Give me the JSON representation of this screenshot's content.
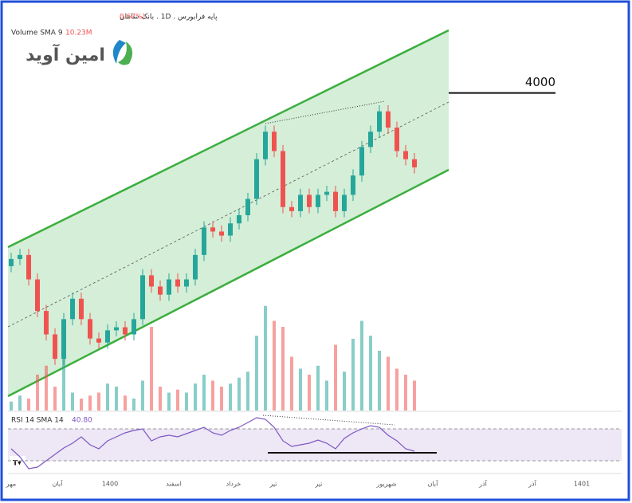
{
  "chart_data": {
    "type": "candlestick",
    "header": "پایه فرابورس . 1D . بانک سامان",
    "change": "0.67%)",
    "volume_label": "Volume SMA 9",
    "volume_sma": "10.23M",
    "rsi_label": "RSI 14 SMA 14",
    "rsi_sma": "40.80",
    "logo": "امین آوید",
    "level": {
      "value": 4000,
      "label": "4000"
    },
    "up_color": "#26a69a",
    "down_color": "#ef5350",
    "ylim": [
      1000,
      4600
    ],
    "open": [
      2300,
      2370,
      2410,
      2170,
      1860,
      1630,
      1390,
      1780,
      1980,
      1780,
      1590,
      1550,
      1670,
      1700,
      1630,
      1780,
      2210,
      2100,
      2020,
      2170,
      2100,
      2170,
      2410,
      2680,
      2640,
      2600,
      2720,
      2800,
      2960,
      3350,
      3620,
      3430,
      2880,
      2840,
      3000,
      2880,
      3000,
      3030,
      2840,
      3000,
      3190,
      3470,
      3620,
      3820,
      3660,
      3430,
      3350
    ],
    "high": [
      2430,
      2470,
      2470,
      2230,
      1920,
      1690,
      1840,
      2040,
      2040,
      1840,
      1650,
      1730,
      1760,
      1760,
      1840,
      2270,
      2270,
      2160,
      2230,
      2230,
      2230,
      2470,
      2740,
      2740,
      2700,
      2780,
      2860,
      3020,
      3410,
      3680,
      3680,
      3490,
      2940,
      3060,
      3060,
      3060,
      3090,
      3090,
      3060,
      3250,
      3530,
      3680,
      3880,
      3880,
      3720,
      3490,
      3410
    ],
    "low": [
      2240,
      2310,
      2110,
      1800,
      1570,
      1330,
      1330,
      1720,
      1720,
      1530,
      1490,
      1490,
      1610,
      1570,
      1570,
      1720,
      2040,
      1960,
      1960,
      2040,
      2040,
      2110,
      2350,
      2580,
      2540,
      2540,
      2660,
      2740,
      2900,
      3290,
      3370,
      2820,
      2780,
      2780,
      2820,
      2820,
      2940,
      2780,
      2780,
      2940,
      3130,
      3410,
      3560,
      3600,
      3370,
      3290,
      3210
    ],
    "close": [
      2370,
      2410,
      2170,
      1860,
      1630,
      1390,
      1780,
      1980,
      1780,
      1590,
      1550,
      1670,
      1700,
      1630,
      1780,
      2210,
      2100,
      2020,
      2170,
      2100,
      2170,
      2410,
      2680,
      2640,
      2600,
      2720,
      2800,
      2960,
      3350,
      3620,
      3430,
      2880,
      2840,
      3000,
      2880,
      3000,
      3030,
      2840,
      3000,
      3190,
      3470,
      3620,
      3820,
      3660,
      3430,
      3350,
      3270
    ],
    "volume": [
      3,
      5,
      4,
      12,
      15,
      8,
      20,
      6,
      4,
      5,
      6,
      9,
      8,
      5,
      4,
      10,
      28,
      8,
      6,
      7,
      6,
      9,
      12,
      10,
      8,
      9,
      11,
      13,
      25,
      35,
      30,
      28,
      18,
      14,
      12,
      15,
      10,
      22,
      13,
      24,
      30,
      25,
      20,
      18,
      14,
      12,
      10
    ],
    "volume_ylim": [
      0,
      40
    ],
    "rsi": [
      45,
      35,
      20,
      22,
      30,
      38,
      46,
      52,
      60,
      50,
      45,
      55,
      60,
      65,
      68,
      70,
      55,
      60,
      62,
      60,
      64,
      68,
      72,
      65,
      62,
      68,
      72,
      78,
      84,
      82,
      72,
      55,
      48,
      50,
      52,
      56,
      52,
      45,
      58,
      65,
      70,
      74,
      72,
      62,
      55,
      45,
      42
    ],
    "rsi_ylim": [
      15,
      88
    ],
    "rsi_bands": [
      30,
      70
    ],
    "rsi_color": "#7e57c2",
    "time_labels": [
      "مهر",
      "آبان",
      "1400",
      "اسفند",
      "خرداد",
      "تیر",
      "تیر",
      "شهریور",
      "آبان",
      "آذر",
      "آذر",
      "1401"
    ]
  }
}
